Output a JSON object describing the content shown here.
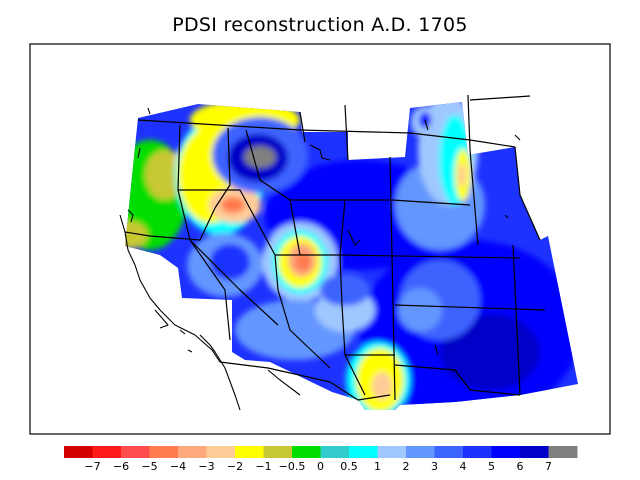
{
  "title": "PDSI reconstruction A.D. 1705",
  "legend": {
    "colors": [
      "#d40000",
      "#ff1a1a",
      "#ff4d4d",
      "#ff7a4d",
      "#ffa880",
      "#ffcc99",
      "#ffff00",
      "#c8c832",
      "#00dd00",
      "#33cccc",
      "#00ffff",
      "#a0c8ff",
      "#6496ff",
      "#3c64ff",
      "#1e32ff",
      "#0000ff",
      "#0000c8",
      "#808080"
    ],
    "labels": [
      "−7",
      "−6",
      "−5",
      "−4",
      "−3",
      "−2",
      "−1",
      "−0.5",
      "0",
      "0.5",
      "1",
      "2",
      "3",
      "4",
      "5",
      "6",
      "7"
    ]
  }
}
